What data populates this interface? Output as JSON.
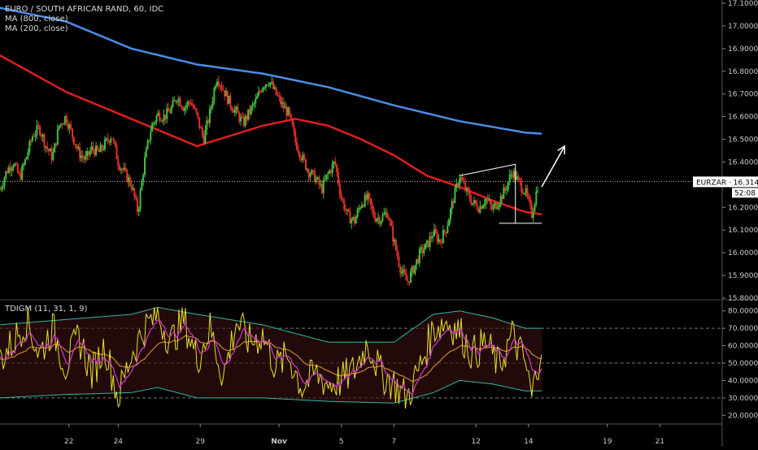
{
  "header": {
    "title": "EURO / SOUTH AFRICAN RAND, 60, IDC",
    "ma_slow": "MA (800, close)",
    "ma_fast": "MA (200, close)"
  },
  "price_tag": {
    "symbol": "EURZAR",
    "price": "16.3144",
    "countdown": "52:08"
  },
  "indicator_title": "TDIGM (11, 31, 1, 9)",
  "colors": {
    "background": "#000000",
    "bull": "#3cc43c",
    "bear": "#e8302a",
    "ma_slow": "#4a8ee8",
    "ma_fast": "#e01e1e",
    "annotation": "#ffffff",
    "rsi": "#e5e02a",
    "signal_fast": "#d43ad1",
    "signal_slow": "#e79a2a",
    "band": "#2fb8a8"
  },
  "chart_data": [
    {
      "type": "candlestick",
      "title": "EURO / SOUTH AFRICAN RAND, 60, IDC",
      "ylim": [
        15.8,
        17.1
      ],
      "y_ticks": [
        "17.1000",
        "17.0000",
        "16.9000",
        "16.8000",
        "16.7000",
        "16.6000",
        "16.5000",
        "16.4000",
        "16.3000",
        "16.2000",
        "16.1000",
        "16.0000",
        "15.9000",
        "15.8000"
      ],
      "x_ticks": [
        "22",
        "24",
        "29",
        "Nov",
        "5",
        "7",
        "12",
        "14",
        "19",
        "21"
      ],
      "last_price": 16.3144,
      "price_path": [
        [
          0,
          16.28
        ],
        [
          2,
          16.36
        ],
        [
          4,
          16.4
        ],
        [
          6,
          16.33
        ],
        [
          8,
          16.42
        ],
        [
          10,
          16.52
        ],
        [
          12,
          16.55
        ],
        [
          14,
          16.47
        ],
        [
          16,
          16.42
        ],
        [
          18,
          16.56
        ],
        [
          20,
          16.6
        ],
        [
          22,
          16.52
        ],
        [
          24,
          16.44
        ],
        [
          26,
          16.41
        ],
        [
          28,
          16.46
        ],
        [
          30,
          16.44
        ],
        [
          32,
          16.48
        ],
        [
          34,
          16.52
        ],
        [
          36,
          16.4
        ],
        [
          38,
          16.35
        ],
        [
          40,
          16.3
        ],
        [
          42,
          16.18
        ],
        [
          44,
          16.4
        ],
        [
          46,
          16.55
        ],
        [
          48,
          16.61
        ],
        [
          50,
          16.6
        ],
        [
          52,
          16.63
        ],
        [
          54,
          16.69
        ],
        [
          56,
          16.64
        ],
        [
          58,
          16.67
        ],
        [
          60,
          16.6
        ],
        [
          62,
          16.5
        ],
        [
          64,
          16.62
        ],
        [
          66,
          16.78
        ],
        [
          68,
          16.72
        ],
        [
          70,
          16.66
        ],
        [
          72,
          16.62
        ],
        [
          74,
          16.57
        ],
        [
          76,
          16.62
        ],
        [
          78,
          16.67
        ],
        [
          80,
          16.74
        ],
        [
          82,
          16.76
        ],
        [
          84,
          16.7
        ],
        [
          86,
          16.65
        ],
        [
          88,
          16.61
        ],
        [
          90,
          16.49
        ],
        [
          92,
          16.42
        ],
        [
          94,
          16.36
        ],
        [
          96,
          16.33
        ],
        [
          98,
          16.28
        ],
        [
          100,
          16.35
        ],
        [
          102,
          16.4
        ],
        [
          104,
          16.24
        ],
        [
          106,
          16.16
        ],
        [
          108,
          16.14
        ],
        [
          110,
          16.22
        ],
        [
          112,
          16.24
        ],
        [
          114,
          16.16
        ],
        [
          116,
          16.15
        ],
        [
          118,
          16.18
        ],
        [
          120,
          16.05
        ],
        [
          122,
          15.93
        ],
        [
          124,
          15.87
        ],
        [
          126,
          15.93
        ],
        [
          128,
          16.0
        ],
        [
          130,
          16.03
        ],
        [
          132,
          16.09
        ],
        [
          134,
          16.05
        ],
        [
          136,
          16.11
        ],
        [
          138,
          16.23
        ],
        [
          140,
          16.34
        ],
        [
          142,
          16.27
        ],
        [
          144,
          16.22
        ],
        [
          146,
          16.2
        ],
        [
          148,
          16.24
        ],
        [
          150,
          16.19
        ],
        [
          152,
          16.23
        ],
        [
          154,
          16.28
        ],
        [
          156,
          16.36
        ],
        [
          158,
          16.31
        ],
        [
          160,
          16.27
        ],
        [
          162,
          16.17
        ],
        [
          164,
          16.31
        ]
      ],
      "x_axis": [
        0,
        220
      ],
      "x_tick_positions": [
        21,
        36,
        61,
        85,
        104,
        120,
        145,
        161,
        185,
        201
      ],
      "series": [
        {
          "name": "MA (800, close)",
          "x": [
            0,
            20,
            40,
            60,
            80,
            100,
            120,
            140,
            160,
            165
          ],
          "values": [
            17.08,
            17.02,
            16.9,
            16.83,
            16.79,
            16.73,
            16.65,
            16.58,
            16.53,
            16.525
          ]
        },
        {
          "name": "MA (200, close)",
          "x": [
            0,
            20,
            40,
            60,
            80,
            90,
            100,
            110,
            120,
            130,
            140,
            150,
            160,
            165
          ],
          "values": [
            16.87,
            16.71,
            16.59,
            16.47,
            16.56,
            16.59,
            16.56,
            16.5,
            16.43,
            16.34,
            16.29,
            16.23,
            16.18,
            16.17
          ]
        }
      ],
      "annotations": {
        "triangle": [
          [
            140,
            16.34
          ],
          [
            157,
            16.39
          ],
          [
            152,
            16.13
          ],
          [
            165,
            16.13
          ]
        ],
        "arrow": [
          [
            165,
            16.29
          ],
          [
            172,
            16.47
          ]
        ]
      }
    },
    {
      "type": "line",
      "title": "TDIGM (11, 31, 1, 9)",
      "ylim": [
        15,
        85
      ],
      "y_ticks": [
        "80.0000",
        "70.0000",
        "60.0000",
        "50.0000",
        "40.0000",
        "30.0000",
        "20.0000"
      ],
      "levels": [
        70,
        50,
        30
      ],
      "rsi_path": [
        [
          0,
          52
        ],
        [
          4,
          62
        ],
        [
          8,
          75
        ],
        [
          12,
          55
        ],
        [
          16,
          70
        ],
        [
          20,
          48
        ],
        [
          24,
          65
        ],
        [
          28,
          44
        ],
        [
          32,
          60
        ],
        [
          36,
          30
        ],
        [
          40,
          55
        ],
        [
          44,
          70
        ],
        [
          48,
          78
        ],
        [
          52,
          62
        ],
        [
          56,
          75
        ],
        [
          60,
          52
        ],
        [
          64,
          70
        ],
        [
          68,
          42
        ],
        [
          72,
          74
        ],
        [
          76,
          62
        ],
        [
          80,
          66
        ],
        [
          84,
          48
        ],
        [
          88,
          54
        ],
        [
          92,
          36
        ],
        [
          96,
          44
        ],
        [
          100,
          38
        ],
        [
          104,
          40
        ],
        [
          108,
          46
        ],
        [
          112,
          62
        ],
        [
          116,
          44
        ],
        [
          120,
          38
        ],
        [
          124,
          30
        ],
        [
          128,
          48
        ],
        [
          132,
          70
        ],
        [
          136,
          74
        ],
        [
          140,
          68
        ],
        [
          144,
          55
        ],
        [
          148,
          62
        ],
        [
          152,
          48
        ],
        [
          156,
          66
        ],
        [
          160,
          50
        ],
        [
          162,
          30
        ],
        [
          165,
          62
        ]
      ],
      "upper_band": [
        [
          0,
          72
        ],
        [
          20,
          75
        ],
        [
          40,
          78
        ],
        [
          48,
          82
        ],
        [
          60,
          78
        ],
        [
          80,
          72
        ],
        [
          100,
          62
        ],
        [
          120,
          62
        ],
        [
          132,
          78
        ],
        [
          140,
          80
        ],
        [
          150,
          76
        ],
        [
          160,
          70
        ],
        [
          165,
          70
        ]
      ],
      "lower_band": [
        [
          0,
          30
        ],
        [
          20,
          32
        ],
        [
          40,
          33
        ],
        [
          48,
          36
        ],
        [
          60,
          30
        ],
        [
          80,
          30
        ],
        [
          100,
          28
        ],
        [
          120,
          27
        ],
        [
          132,
          33
        ],
        [
          140,
          40
        ],
        [
          150,
          38
        ],
        [
          160,
          34
        ],
        [
          165,
          34
        ]
      ]
    }
  ]
}
